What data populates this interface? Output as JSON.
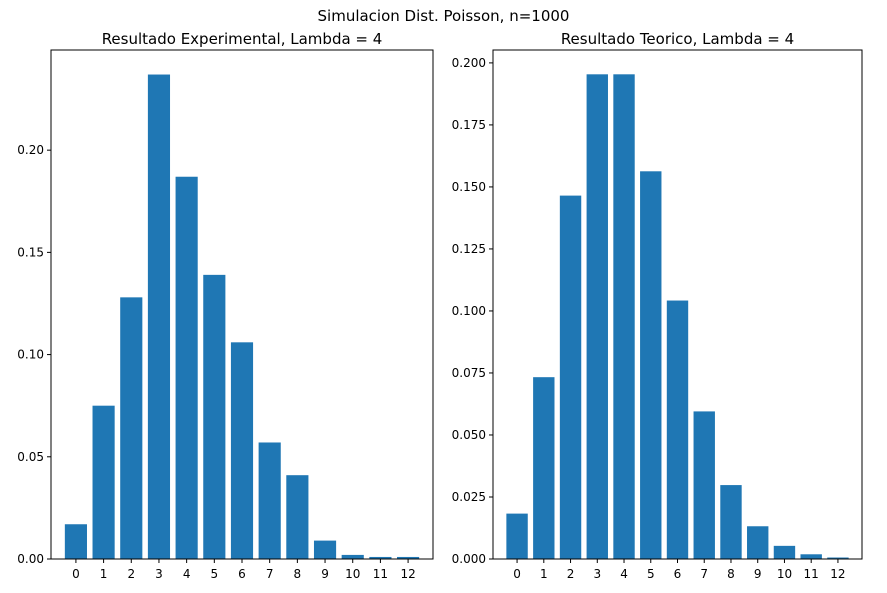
{
  "figure": {
    "suptitle": "Simulacion Dist. Poisson, n=1000"
  },
  "chart_data": [
    {
      "type": "bar",
      "title": "Resultado Experimental, Lambda = 4",
      "xlabel": "",
      "ylabel": "",
      "categories": [
        "0",
        "1",
        "2",
        "3",
        "4",
        "5",
        "6",
        "7",
        "8",
        "9",
        "10",
        "11",
        "12"
      ],
      "values": [
        0.017,
        0.075,
        0.128,
        0.237,
        0.187,
        0.139,
        0.106,
        0.057,
        0.041,
        0.009,
        0.002,
        0.001,
        0.001
      ],
      "ylim": [
        0,
        0.249
      ],
      "yticks": [
        0.0,
        0.05,
        0.1,
        0.15,
        0.2
      ],
      "ytick_labels": [
        "0.00",
        "0.05",
        "0.10",
        "0.15",
        "0.20"
      ],
      "bar_color": "#1f77b4",
      "grid": false
    },
    {
      "type": "bar",
      "title": "Resultado Teorico, Lambda = 4",
      "xlabel": "",
      "ylabel": "",
      "categories": [
        "0",
        "1",
        "2",
        "3",
        "4",
        "5",
        "6",
        "7",
        "8",
        "9",
        "10",
        "11",
        "12"
      ],
      "values": [
        0.0183,
        0.0733,
        0.1465,
        0.1954,
        0.1954,
        0.1563,
        0.1042,
        0.0595,
        0.0298,
        0.0132,
        0.0053,
        0.0019,
        0.0006
      ],
      "ylim": [
        0,
        0.2052
      ],
      "yticks": [
        0.0,
        0.025,
        0.05,
        0.075,
        0.1,
        0.125,
        0.15,
        0.175,
        0.2
      ],
      "ytick_labels": [
        "0.000",
        "0.025",
        "0.050",
        "0.075",
        "0.100",
        "0.125",
        "0.150",
        "0.175",
        "0.200"
      ],
      "bar_color": "#1f77b4",
      "grid": false
    }
  ]
}
